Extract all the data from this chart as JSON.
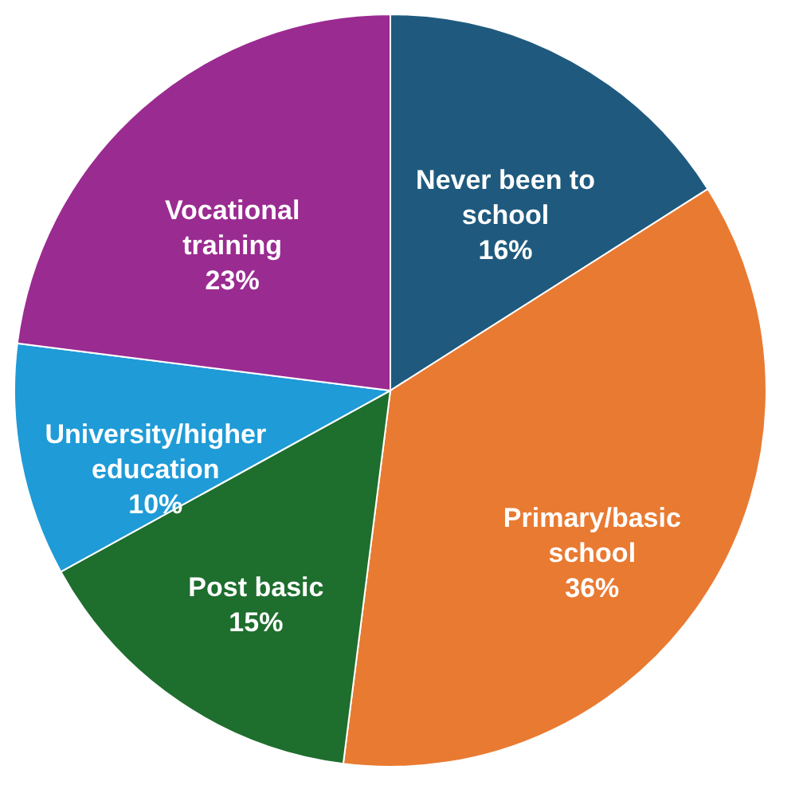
{
  "chart_data": {
    "type": "pie",
    "categories": [
      "Never been to school",
      "Primary/basic school",
      "Post basic",
      "University/higher education",
      "Vocational training"
    ],
    "values": [
      16,
      36,
      15,
      10,
      23
    ],
    "colors": [
      "#1f5a7e",
      "#e97a32",
      "#1e6e2e",
      "#1f9bd7",
      "#9a2b91"
    ],
    "value_labels": [
      "16%",
      "36%",
      "15%",
      "10%",
      "23%"
    ],
    "legend": false
  }
}
